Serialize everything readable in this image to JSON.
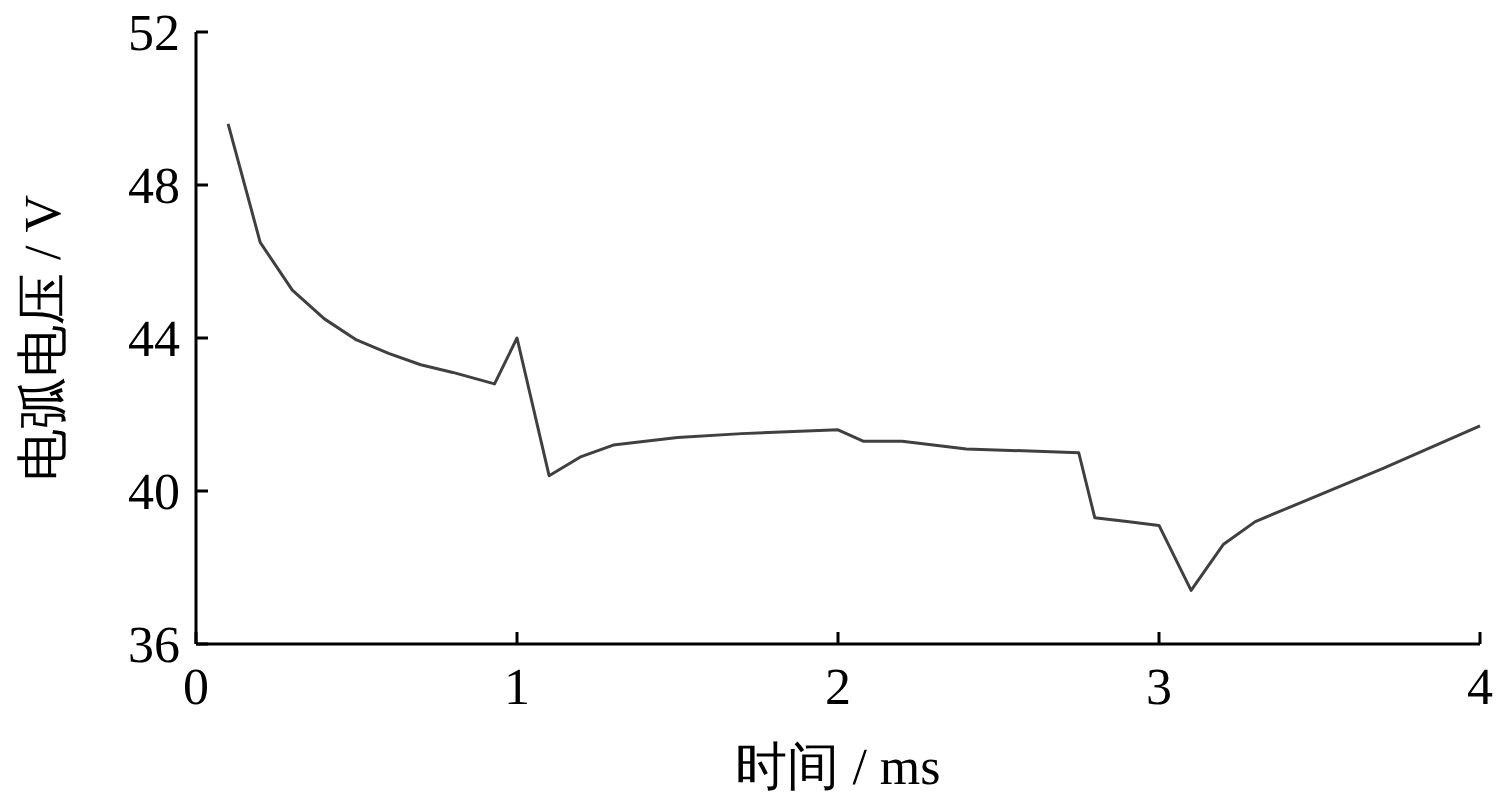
{
  "chart_data": {
    "type": "line",
    "xlabel": "时间 / ms",
    "ylabel": "电弧电压 / V",
    "xlim": [
      0,
      4
    ],
    "xticks": [
      0,
      1,
      2,
      3,
      4
    ],
    "ylim": [
      36,
      52
    ],
    "yticks": [
      36,
      40,
      44,
      48,
      52
    ],
    "grid": false,
    "marker": "none",
    "line_style": "solid",
    "series": [
      {
        "color": "#404040",
        "x": [
          0.1,
          0.2,
          0.3,
          0.4,
          0.5,
          0.6,
          0.7,
          0.8,
          0.93,
          1.0,
          1.1,
          1.2,
          1.3,
          1.5,
          1.7,
          2.0,
          2.08,
          2.2,
          2.4,
          2.75,
          2.8,
          2.9,
          3.0,
          3.1,
          3.2,
          3.3,
          3.5,
          3.7,
          4.0
        ],
        "values": [
          49.6,
          46.5,
          45.25,
          44.5,
          43.95,
          43.6,
          43.3,
          43.1,
          42.8,
          44.0,
          40.4,
          40.9,
          41.2,
          41.4,
          41.5,
          41.6,
          41.3,
          41.3,
          41.1,
          41.0,
          39.3,
          39.2,
          39.1,
          37.4,
          38.6,
          39.2,
          39.9,
          40.6,
          41.7
        ]
      }
    ]
  }
}
